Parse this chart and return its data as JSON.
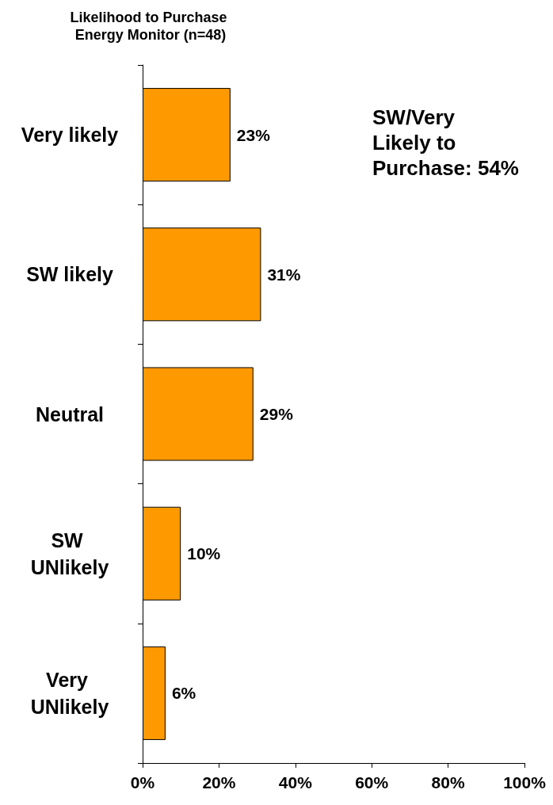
{
  "chart_data": {
    "type": "bar",
    "orientation": "horizontal",
    "title": "Likelihood to Purchase Energy Monitor (n=48)",
    "categories": [
      "Very likely",
      "SW likely",
      "Neutral",
      "SW UNlikely",
      "Very UNlikely"
    ],
    "values": [
      23,
      31,
      29,
      10,
      6
    ],
    "color": "#ff9900",
    "value_labels": [
      "23%",
      "31%",
      "29%",
      "10%",
      "6%"
    ],
    "xlim": [
      0,
      100
    ],
    "xticks": [
      {
        "value": 0,
        "label": "0%"
      },
      {
        "value": 20,
        "label": "20%"
      },
      {
        "value": 40,
        "label": "40%"
      },
      {
        "value": 60,
        "label": "60%"
      },
      {
        "value": 80,
        "label": "80%"
      },
      {
        "value": 100,
        "label": "100%"
      }
    ],
    "annotations": [
      "SW/Very Likely to Purchase: 54%"
    ],
    "grid": false
  }
}
